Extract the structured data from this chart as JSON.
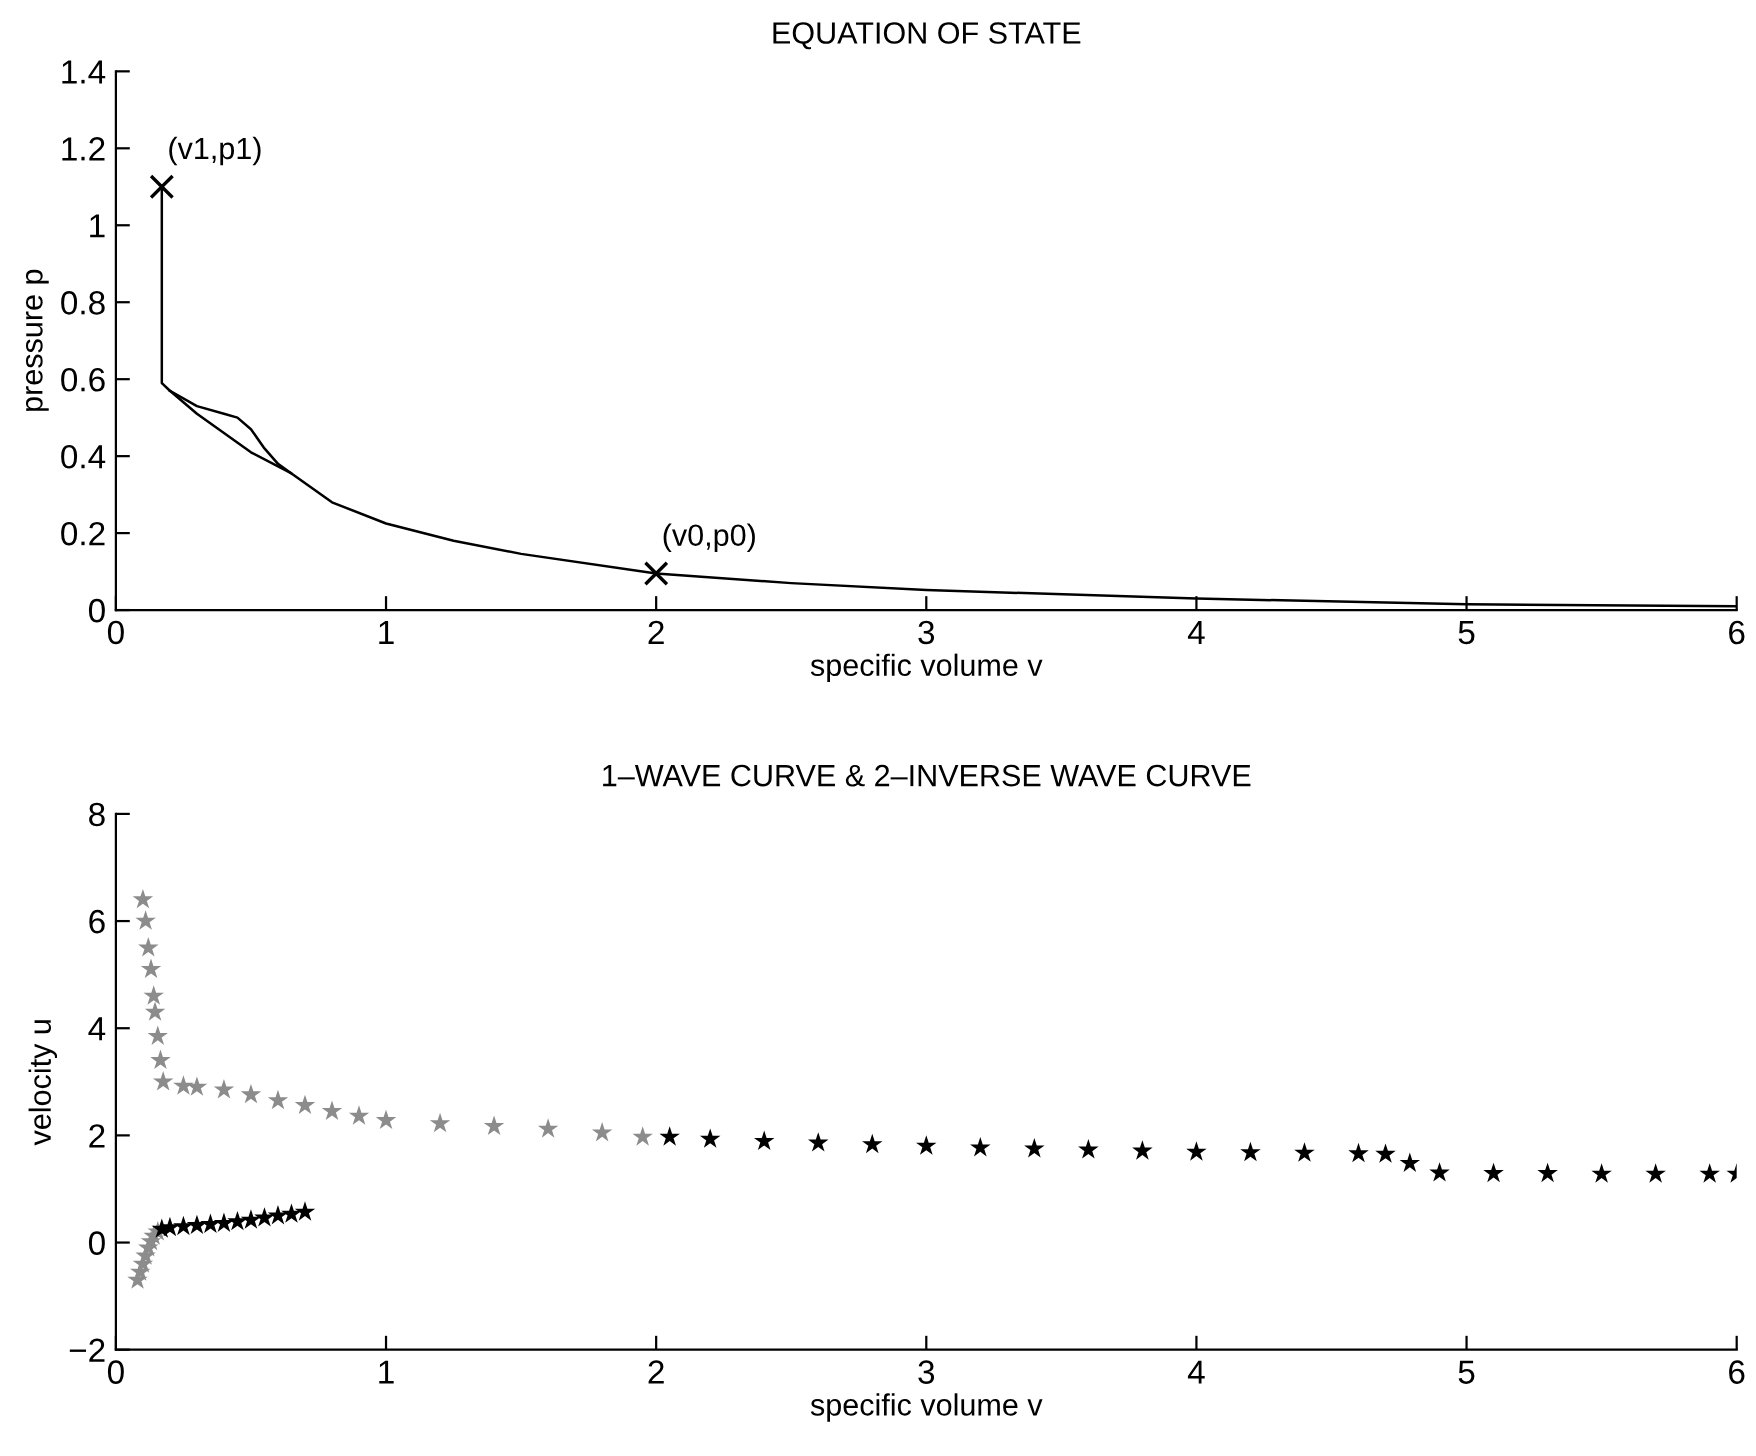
{
  "chart_data": [
    {
      "type": "line",
      "title": "EQUATION OF STATE",
      "xlabel": "specific volume v",
      "ylabel": "pressure p",
      "xlim": [
        0,
        6
      ],
      "ylim": [
        0,
        1.4
      ],
      "xticks": [
        0,
        1,
        2,
        3,
        4,
        5,
        6
      ],
      "yticks": [
        0,
        0.2,
        0.4,
        0.6,
        0.8,
        1,
        1.2,
        1.4
      ],
      "grid": false,
      "legend": false,
      "line_style": "solid",
      "annotations": [
        {
          "text": "(v1,p1)",
          "x": 0.17,
          "y": 1.1
        },
        {
          "text": "(v0,p0)",
          "x": 2,
          "y": 0.095
        }
      ],
      "series": [
        {
          "color": "#000000",
          "x": [
            0.17,
            0.17,
            0.2,
            0.3,
            0.4,
            0.5,
            0.65,
            0.8,
            1,
            1.25,
            1.5,
            2,
            2.5,
            3,
            4,
            5,
            6
          ],
          "values": [
            1.1,
            0.59,
            0.57,
            0.51,
            0.46,
            0.41,
            0.355,
            0.28,
            0.225,
            0.18,
            0.146,
            0.095,
            0.07,
            0.052,
            0.03,
            0.015,
            0.01
          ]
        },
        {
          "color": "#000000",
          "x": [
            0.2,
            0.3,
            0.4,
            0.45,
            0.5,
            0.55,
            0.6,
            0.65
          ],
          "values": [
            0.57,
            0.53,
            0.51,
            0.5,
            0.47,
            0.42,
            0.38,
            0.355
          ]
        },
        {
          "type": "scatter",
          "marker": "cross",
          "color": "#000000",
          "x": [
            0.17,
            2
          ],
          "values": [
            1.1,
            0.095
          ]
        }
      ]
    },
    {
      "type": "scatter",
      "title": "1–WAVE CURVE & 2–INVERSE WAVE CURVE",
      "xlabel": "specific volume v",
      "ylabel": "velocity u",
      "xlim": [
        0,
        6
      ],
      "ylim": [
        -2,
        8
      ],
      "xticks": [
        0,
        1,
        2,
        3,
        4,
        5,
        6
      ],
      "yticks": [
        {
          "value": -2,
          "label": "−2"
        },
        0,
        2,
        4,
        6,
        8
      ],
      "grid": false,
      "legend": false,
      "marker": "star",
      "series": [
        {
          "color": "#8c8c8c",
          "x": [
            0.1,
            0.11,
            0.12,
            0.13,
            0.14,
            0.145,
            0.155,
            0.165,
            0.175,
            0.25,
            0.3,
            0.4,
            0.5,
            0.6,
            0.7,
            0.8,
            0.9,
            1.0,
            1.2,
            1.4,
            1.6,
            1.8,
            1.95
          ],
          "values": [
            6.4,
            6.0,
            5.5,
            5.1,
            4.6,
            4.3,
            3.85,
            3.4,
            3.0,
            2.92,
            2.9,
            2.85,
            2.76,
            2.65,
            2.56,
            2.45,
            2.36,
            2.28,
            2.22,
            2.17,
            2.12,
            2.05,
            1.97
          ]
        },
        {
          "color": "#000000",
          "x": [
            2.05,
            2.2,
            2.4,
            2.6,
            2.8,
            3.0,
            3.2,
            3.4,
            3.6,
            3.8,
            4.0,
            4.2,
            4.4,
            4.6,
            4.7
          ],
          "values": [
            1.97,
            1.93,
            1.89,
            1.86,
            1.83,
            1.8,
            1.77,
            1.75,
            1.73,
            1.71,
            1.69,
            1.68,
            1.67,
            1.66,
            1.65
          ]
        },
        {
          "color": "#000000",
          "x": [
            4.79
          ],
          "values": [
            1.48
          ]
        },
        {
          "color": "#000000",
          "x": [
            4.9,
            5.1,
            5.3,
            5.5,
            5.7,
            5.9,
            6.0
          ],
          "values": [
            1.3,
            1.29,
            1.29,
            1.28,
            1.28,
            1.28,
            1.28
          ]
        },
        {
          "color": "#8c8c8c",
          "x": [
            0.08,
            0.09,
            0.1,
            0.11,
            0.12,
            0.13,
            0.14,
            0.155
          ],
          "values": [
            -0.7,
            -0.55,
            -0.4,
            -0.25,
            -0.1,
            0.02,
            0.12,
            0.2
          ]
        },
        {
          "color": "#000000",
          "x": [
            0.17,
            0.2,
            0.25,
            0.3,
            0.35,
            0.4,
            0.45,
            0.5,
            0.55,
            0.6,
            0.65,
            0.7
          ],
          "values": [
            0.25,
            0.28,
            0.3,
            0.32,
            0.34,
            0.36,
            0.39,
            0.42,
            0.46,
            0.5,
            0.53,
            0.57
          ]
        }
      ]
    }
  ]
}
